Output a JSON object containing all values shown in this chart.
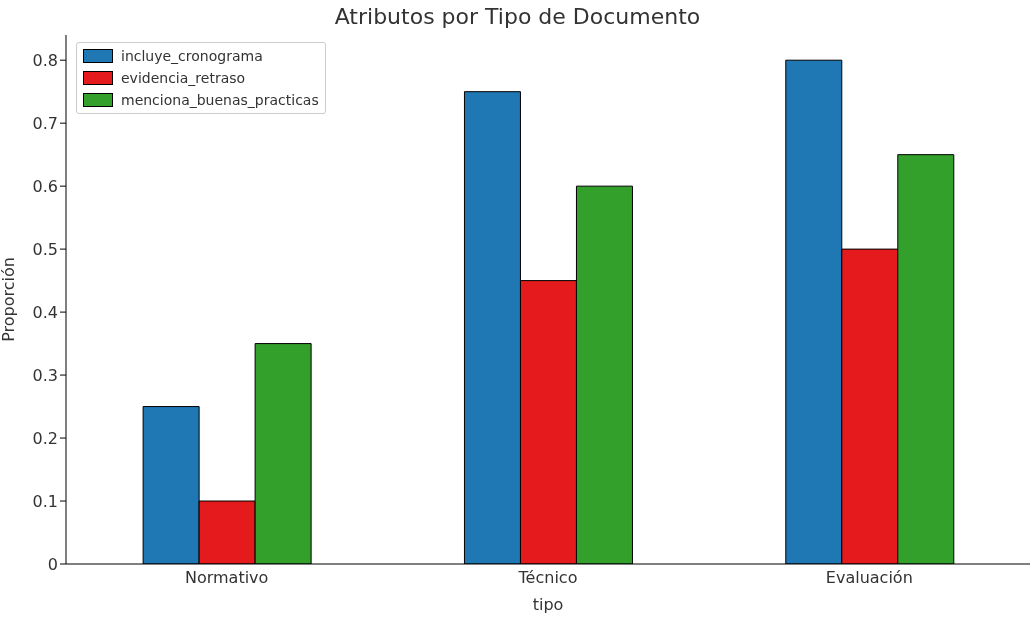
{
  "chart_data": {
    "type": "bar",
    "title": "Atributos por Tipo de Documento",
    "xlabel": "tipo",
    "ylabel": "Proporción",
    "categories": [
      "Normativo",
      "Técnico",
      "Evaluación"
    ],
    "series": [
      {
        "name": "incluye_cronograma",
        "color": "#1f77b4",
        "values": [
          0.25,
          0.75,
          0.8
        ]
      },
      {
        "name": "evidencia_retraso",
        "color": "#e41a1c",
        "values": [
          0.1,
          0.45,
          0.5
        ]
      },
      {
        "name": "menciona_buenas_practicas",
        "color": "#33a02c",
        "values": [
          0.35,
          0.6,
          0.65
        ]
      }
    ],
    "ylim": [
      0,
      0.84
    ],
    "yticks": [
      0,
      0.1,
      0.2,
      0.3,
      0.4,
      0.5,
      0.6,
      0.7,
      0.8
    ],
    "grid": false,
    "legend": "top left"
  }
}
